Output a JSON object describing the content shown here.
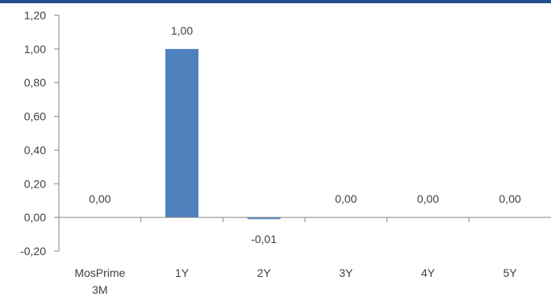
{
  "chart_data": {
    "type": "bar",
    "categories": [
      "MosPrime 3M",
      "1Y",
      "2Y",
      "3Y",
      "4Y",
      "5Y"
    ],
    "category_lines": [
      [
        "MosPrime",
        "3M"
      ],
      [
        "1Y"
      ],
      [
        "2Y"
      ],
      [
        "3Y"
      ],
      [
        "4Y"
      ],
      [
        "5Y"
      ]
    ],
    "values": [
      0.0,
      1.0,
      -0.01,
      0.0,
      0.0,
      0.0
    ],
    "data_labels": [
      "0,00",
      "1,00",
      "-0,01",
      "0,00",
      "0,00",
      "0,00"
    ],
    "ylim": [
      -0.2,
      1.2
    ],
    "yticks": [
      -0.2,
      0.0,
      0.2,
      0.4,
      0.6,
      0.8,
      1.0,
      1.2
    ],
    "ytick_labels": [
      "-0,20",
      "0,00",
      "0,20",
      "0,40",
      "0,60",
      "0,80",
      "1,00",
      "1,20"
    ],
    "title": "",
    "xlabel": "",
    "ylabel": "",
    "grid": false,
    "legend": "none",
    "colors": {
      "bar": "#4f81bd",
      "axis": "#868686",
      "text": "#404040",
      "top_border": "#1f4e8c"
    }
  }
}
